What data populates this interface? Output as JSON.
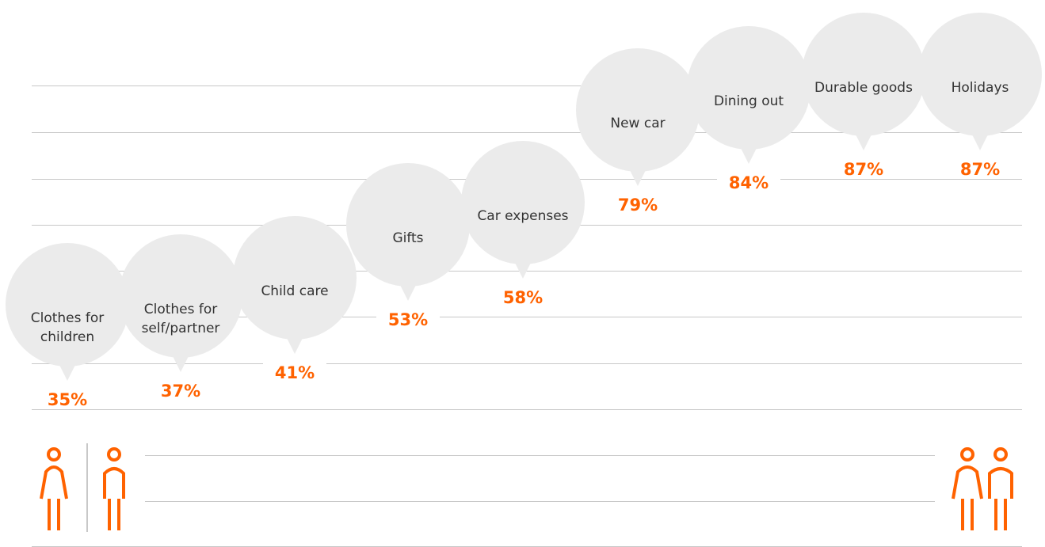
{
  "chart_data": {
    "type": "bubble-steps",
    "categories": [
      "Clothes for children",
      "Clothes for self/partner",
      "Child care",
      "Gifts",
      "Car expenses",
      "New car",
      "Dining out",
      "Durable goods",
      "Holidays"
    ],
    "values": [
      35,
      37,
      41,
      53,
      58,
      79,
      84,
      87,
      87
    ],
    "value_labels": [
      "35%",
      "37%",
      "41%",
      "53%",
      "58%",
      "79%",
      "84%",
      "87%",
      "87%"
    ],
    "color": "#ff6200"
  }
}
